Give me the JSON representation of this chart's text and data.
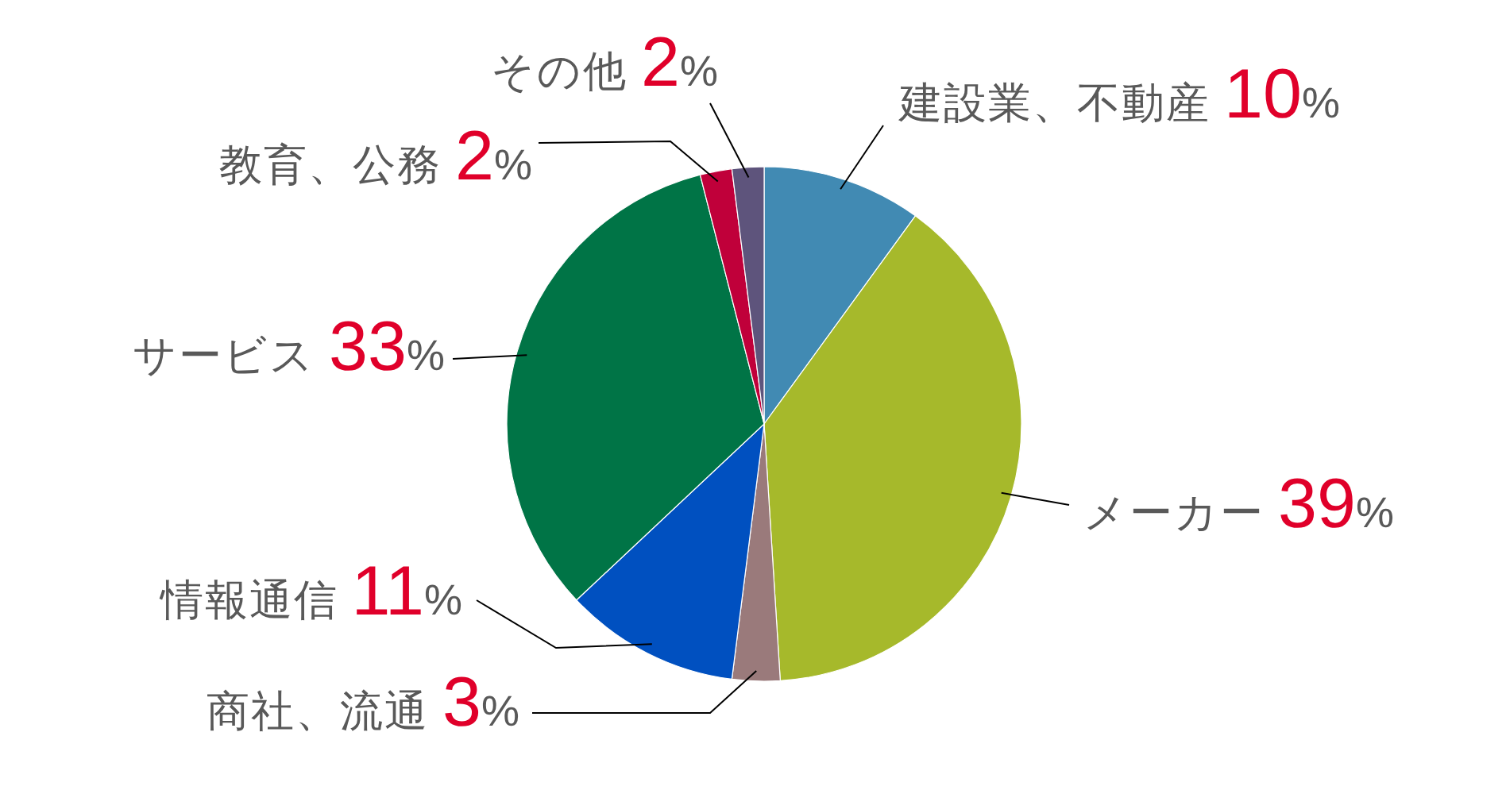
{
  "chart_data": {
    "type": "pie",
    "categories": [
      "建設業、不動産",
      "メーカー",
      "商社、流通",
      "情報通信",
      "サービス",
      "教育、公務",
      "その他"
    ],
    "values": [
      10,
      39,
      3,
      11,
      33,
      2,
      2
    ],
    "colors": [
      "#418ab3",
      "#a6b92b",
      "#9a7a7b",
      "#0050c0",
      "#007446",
      "#c0003a",
      "#5e547c"
    ],
    "value_labels": [
      "10%",
      "39%",
      "3%",
      "11%",
      "33%",
      "2%",
      "2%"
    ]
  }
}
